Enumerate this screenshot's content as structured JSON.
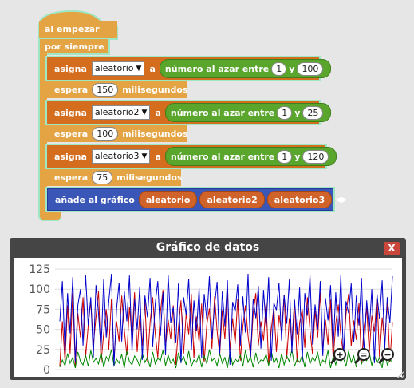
{
  "blocks": {
    "on_start": "al empezar",
    "forever": "por siempre",
    "set": "asigna",
    "to": "a",
    "random_between": "número al azar entre",
    "and": "y",
    "wait": "espera",
    "ms": "milisegundos",
    "add_to_graph": "añade al gráfico",
    "rows": [
      {
        "var": "aleatorio",
        "min": "1",
        "max": "100",
        "wait": "150"
      },
      {
        "var": "aleatorio2",
        "min": "1",
        "max": "25",
        "wait": "100"
      },
      {
        "var": "aleatorio3",
        "min": "1",
        "max": "120",
        "wait": "75"
      }
    ],
    "graph_vars": [
      "aleatorio",
      "aleatorio2",
      "aleatorio3"
    ]
  },
  "window": {
    "title": "Gráfico de datos",
    "close_label": "X"
  },
  "colors": {
    "series1": "#cc0000",
    "series2": "#008800",
    "series3": "#0000cc"
  },
  "chart_data": {
    "type": "line",
    "ylim": [
      0,
      125
    ],
    "yticks": [
      "125",
      "100",
      "75",
      "50",
      "25",
      "0"
    ],
    "grid": true,
    "series": [
      {
        "values": [
          5,
          60,
          10,
          80,
          20,
          95,
          3,
          70,
          40,
          90,
          15,
          55,
          85,
          30,
          65,
          98,
          8,
          45,
          75,
          25,
          88,
          12,
          60,
          35,
          92,
          50,
          18,
          78,
          40,
          96,
          22,
          68,
          30,
          85,
          10,
          58,
          90,
          45,
          15,
          72,
          99,
          28,
          62,
          38,
          80,
          6,
          52,
          86,
          20,
          70,
          44,
          94,
          14,
          66,
          34,
          82,
          9,
          56,
          76,
          26,
          91,
          48,
          17,
          74,
          38,
          97,
          24,
          64,
          32,
          88,
          11,
          54,
          80,
          42,
          16,
          70,
          95,
          30,
          60,
          36,
          84,
          7,
          50,
          78,
          22,
          68,
          46,
          93,
          13,
          64,
          35,
          86,
          10,
          58,
          75,
          27,
          90,
          49,
          19,
          73,
          40,
          96,
          25,
          62,
          31,
          87,
          12,
          57,
          81,
          43,
          18,
          69,
          94,
          29,
          61,
          37,
          83,
          8,
          53,
          77,
          21,
          67,
          47,
          92,
          15,
          65,
          33,
          85,
          9,
          59
        ]
      },
      {
        "values": [
          3,
          12,
          5,
          20,
          8,
          15,
          2,
          22,
          10,
          6,
          18,
          4,
          24,
          9,
          14,
          7,
          21,
          3,
          16,
          11,
          25,
          5,
          13,
          8,
          19,
          2,
          23,
          10,
          6,
          17,
          12,
          4,
          20,
          9,
          15,
          3,
          22,
          7,
          14,
          11,
          24,
          5,
          18,
          8,
          13,
          2,
          21,
          10,
          16,
          6,
          23,
          4,
          12,
          9,
          19,
          3,
          17,
          7,
          25,
          11,
          14,
          5,
          20,
          8,
          15,
          2,
          22,
          6,
          13,
          10,
          18,
          4,
          24,
          9,
          16,
          3,
          21,
          7,
          12,
          11,
          19,
          5,
          23,
          8,
          14,
          2,
          20,
          6,
          17,
          10,
          25,
          4,
          13,
          9,
          18,
          3,
          22,
          7,
          15,
          11,
          21,
          5,
          12,
          8,
          24,
          2,
          16,
          6,
          19,
          10,
          14,
          4,
          23,
          9,
          17,
          3,
          20,
          7,
          13,
          11,
          22,
          5,
          18,
          8,
          15,
          2,
          25,
          6,
          12,
          10
        ]
      },
      {
        "values": [
          60,
          110,
          20,
          95,
          45,
          115,
          10,
          80,
          100,
          30,
          118,
          55,
          90,
          15,
          105,
          70,
          25,
          112,
          40,
          85,
          119,
          5,
          75,
          108,
          35,
          98,
          60,
          117,
          22,
          88,
          50,
          103,
          12,
          92,
          65,
          114,
          28,
          82,
          110,
          42,
          96,
          18,
          118,
          58,
          78,
          33,
          107,
          8,
          90,
          68,
          113,
          24,
          86,
          48,
          101,
          14,
          94,
          62,
          116,
          38,
          80,
          109,
          20,
          97,
          54,
          111,
          6,
          84,
          72,
          106,
          30,
          91,
          46,
          119,
          16,
          88,
          64,
          104,
          26,
          99,
          52,
          115,
          11,
          83,
          74,
          108,
          36,
          93,
          57,
          112,
          21,
          87,
          44,
          102,
          9,
          95,
          67,
          117,
          31,
          81,
          50,
          110,
          17,
          89,
          61,
          105,
          27,
          96,
          41,
          118,
          13,
          85,
          70,
          107,
          34,
          92,
          55,
          114,
          19,
          86,
          47,
          100,
          8,
          94,
          63,
          111,
          25,
          90,
          58,
          116
        ]
      }
    ]
  }
}
